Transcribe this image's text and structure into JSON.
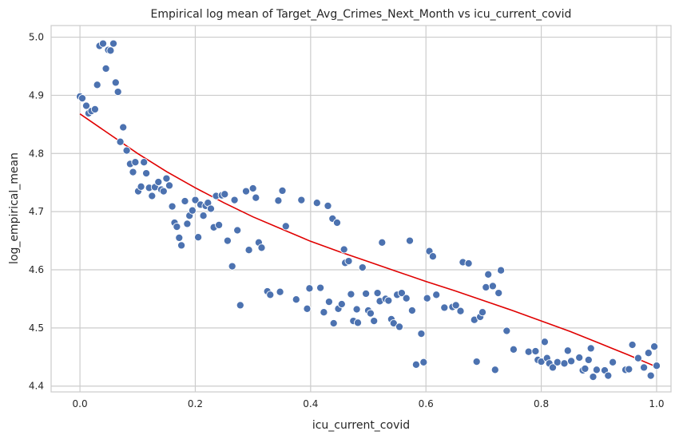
{
  "chart_data": {
    "type": "scatter",
    "title": "Empirical log mean of Target_Avg_Crimes_Next_Month vs icu_current_covid",
    "xlabel": "icu_current_covid",
    "ylabel": "log_empirical_mean",
    "xlim": [
      -0.05,
      1.025
    ],
    "ylim": [
      4.39,
      5.02
    ],
    "xticks": [
      0.0,
      0.2,
      0.4,
      0.6,
      0.8,
      1.0
    ],
    "xtick_labels": [
      "0.0",
      "0.2",
      "0.4",
      "0.6",
      "0.8",
      "1.0"
    ],
    "yticks": [
      4.4,
      4.5,
      4.6,
      4.7,
      4.8,
      4.9,
      5.0
    ],
    "ytick_labels": [
      "4.4",
      "4.5",
      "4.6",
      "4.7",
      "4.8",
      "4.9",
      "5.0"
    ],
    "grid": true,
    "legend": "none",
    "colors": {
      "points": "#4c72b0",
      "fit_line": "#e00000",
      "grid": "#cccccc"
    },
    "series": [
      {
        "kind": "scatter",
        "points": [
          [
            0.0,
            4.898
          ],
          [
            0.004,
            4.895
          ],
          [
            0.011,
            4.882
          ],
          [
            0.015,
            4.869
          ],
          [
            0.02,
            4.873
          ],
          [
            0.026,
            4.876
          ],
          [
            0.03,
            4.918
          ],
          [
            0.034,
            4.985
          ],
          [
            0.04,
            4.989
          ],
          [
            0.045,
            4.946
          ],
          [
            0.049,
            4.978
          ],
          [
            0.053,
            4.977
          ],
          [
            0.058,
            4.989
          ],
          [
            0.062,
            4.922
          ],
          [
            0.066,
            4.906
          ],
          [
            0.07,
            4.82
          ],
          [
            0.075,
            4.845
          ],
          [
            0.081,
            4.805
          ],
          [
            0.087,
            4.782
          ],
          [
            0.092,
            4.768
          ],
          [
            0.096,
            4.785
          ],
          [
            0.101,
            4.735
          ],
          [
            0.106,
            4.743
          ],
          [
            0.111,
            4.785
          ],
          [
            0.115,
            4.766
          ],
          [
            0.12,
            4.741
          ],
          [
            0.125,
            4.727
          ],
          [
            0.13,
            4.742
          ],
          [
            0.136,
            4.751
          ],
          [
            0.141,
            4.738
          ],
          [
            0.145,
            4.735
          ],
          [
            0.15,
            4.757
          ],
          [
            0.155,
            4.745
          ],
          [
            0.16,
            4.709
          ],
          [
            0.164,
            4.681
          ],
          [
            0.168,
            4.674
          ],
          [
            0.172,
            4.655
          ],
          [
            0.176,
            4.642
          ],
          [
            0.182,
            4.718
          ],
          [
            0.186,
            4.679
          ],
          [
            0.19,
            4.693
          ],
          [
            0.195,
            4.702
          ],
          [
            0.2,
            4.72
          ],
          [
            0.205,
            4.656
          ],
          [
            0.209,
            4.712
          ],
          [
            0.214,
            4.693
          ],
          [
            0.218,
            4.71
          ],
          [
            0.222,
            4.715
          ],
          [
            0.227,
            4.705
          ],
          [
            0.232,
            4.673
          ],
          [
            0.236,
            4.727
          ],
          [
            0.241,
            4.677
          ],
          [
            0.246,
            4.728
          ],
          [
            0.251,
            4.73
          ],
          [
            0.256,
            4.65
          ],
          [
            0.264,
            4.606
          ],
          [
            0.268,
            4.72
          ],
          [
            0.273,
            4.668
          ],
          [
            0.278,
            4.539
          ],
          [
            0.288,
            4.735
          ],
          [
            0.293,
            4.634
          ],
          [
            0.3,
            4.74
          ],
          [
            0.305,
            4.724
          ],
          [
            0.31,
            4.647
          ],
          [
            0.315,
            4.638
          ],
          [
            0.325,
            4.563
          ],
          [
            0.33,
            4.557
          ],
          [
            0.344,
            4.719
          ],
          [
            0.347,
            4.562
          ],
          [
            0.351,
            4.736
          ],
          [
            0.357,
            4.675
          ],
          [
            0.375,
            4.549
          ],
          [
            0.384,
            4.72
          ],
          [
            0.394,
            4.533
          ],
          [
            0.398,
            4.568
          ],
          [
            0.411,
            4.715
          ],
          [
            0.417,
            4.569
          ],
          [
            0.423,
            4.527
          ],
          [
            0.43,
            4.71
          ],
          [
            0.432,
            4.545
          ],
          [
            0.438,
            4.688
          ],
          [
            0.44,
            4.508
          ],
          [
            0.446,
            4.681
          ],
          [
            0.448,
            4.533
          ],
          [
            0.454,
            4.541
          ],
          [
            0.458,
            4.635
          ],
          [
            0.46,
            4.612
          ],
          [
            0.466,
            4.615
          ],
          [
            0.47,
            4.558
          ],
          [
            0.474,
            4.512
          ],
          [
            0.48,
            4.532
          ],
          [
            0.482,
            4.509
          ],
          [
            0.49,
            4.604
          ],
          [
            0.496,
            4.559
          ],
          [
            0.5,
            4.53
          ],
          [
            0.504,
            4.525
          ],
          [
            0.51,
            4.512
          ],
          [
            0.516,
            4.56
          ],
          [
            0.52,
            4.546
          ],
          [
            0.524,
            4.647
          ],
          [
            0.53,
            4.55
          ],
          [
            0.535,
            4.547
          ],
          [
            0.54,
            4.515
          ],
          [
            0.544,
            4.508
          ],
          [
            0.55,
            4.557
          ],
          [
            0.554,
            4.502
          ],
          [
            0.558,
            4.56
          ],
          [
            0.566,
            4.551
          ],
          [
            0.572,
            4.65
          ],
          [
            0.576,
            4.53
          ],
          [
            0.583,
            4.437
          ],
          [
            0.592,
            4.49
          ],
          [
            0.596,
            4.441
          ],
          [
            0.602,
            4.551
          ],
          [
            0.606,
            4.632
          ],
          [
            0.612,
            4.623
          ],
          [
            0.618,
            4.557
          ],
          [
            0.632,
            4.535
          ],
          [
            0.646,
            4.536
          ],
          [
            0.652,
            4.539
          ],
          [
            0.66,
            4.529
          ],
          [
            0.664,
            4.613
          ],
          [
            0.674,
            4.611
          ],
          [
            0.684,
            4.514
          ],
          [
            0.688,
            4.442
          ],
          [
            0.694,
            4.519
          ],
          [
            0.698,
            4.527
          ],
          [
            0.704,
            4.57
          ],
          [
            0.708,
            4.592
          ],
          [
            0.716,
            4.572
          ],
          [
            0.72,
            4.428
          ],
          [
            0.726,
            4.56
          ],
          [
            0.73,
            4.599
          ],
          [
            0.74,
            4.495
          ],
          [
            0.752,
            4.463
          ],
          [
            0.778,
            4.459
          ],
          [
            0.79,
            4.46
          ],
          [
            0.794,
            4.445
          ],
          [
            0.8,
            4.442
          ],
          [
            0.806,
            4.476
          ],
          [
            0.81,
            4.448
          ],
          [
            0.814,
            4.439
          ],
          [
            0.82,
            4.432
          ],
          [
            0.828,
            4.441
          ],
          [
            0.84,
            4.439
          ],
          [
            0.846,
            4.461
          ],
          [
            0.852,
            4.443
          ],
          [
            0.866,
            4.449
          ],
          [
            0.872,
            4.427
          ],
          [
            0.876,
            4.43
          ],
          [
            0.882,
            4.445
          ],
          [
            0.886,
            4.465
          ],
          [
            0.89,
            4.416
          ],
          [
            0.896,
            4.428
          ],
          [
            0.91,
            4.427
          ],
          [
            0.916,
            4.418
          ],
          [
            0.924,
            4.441
          ],
          [
            0.946,
            4.428
          ],
          [
            0.952,
            4.429
          ],
          [
            0.958,
            4.471
          ],
          [
            0.968,
            4.448
          ],
          [
            0.978,
            4.432
          ],
          [
            0.986,
            4.457
          ],
          [
            0.99,
            4.418
          ],
          [
            0.996,
            4.468
          ],
          [
            1.0,
            4.435
          ]
        ]
      },
      {
        "kind": "line",
        "x": [
          0.0,
          0.05,
          0.1,
          0.15,
          0.2,
          0.25,
          0.3,
          0.35,
          0.4,
          0.45,
          0.5,
          0.55,
          0.6,
          0.65,
          0.7,
          0.75,
          0.8,
          0.85,
          0.9,
          0.95,
          1.0
        ],
        "y": [
          4.868,
          4.834,
          4.8,
          4.769,
          4.741,
          4.715,
          4.691,
          4.67,
          4.649,
          4.631,
          4.614,
          4.597,
          4.58,
          4.564,
          4.547,
          4.53,
          4.512,
          4.494,
          4.474,
          4.454,
          4.433
        ]
      }
    ]
  }
}
